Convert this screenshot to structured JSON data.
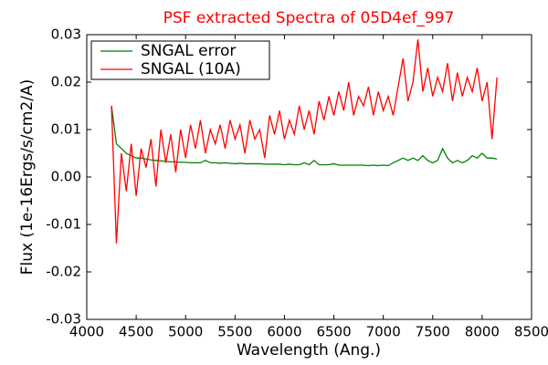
{
  "chart_data": {
    "type": "line",
    "title": "PSF extracted Spectra of 05D4ef_997",
    "x_label": "Wavelength (Ang.)",
    "y_label": "Flux (1e-16Ergs/s/cm2/A)",
    "x": [
      4250,
      4300,
      4350,
      4400,
      4450,
      4500,
      4550,
      4600,
      4650,
      4700,
      4750,
      4800,
      4850,
      4900,
      4950,
      5000,
      5050,
      5100,
      5150,
      5200,
      5250,
      5300,
      5350,
      5400,
      5450,
      5500,
      5550,
      5600,
      5650,
      5700,
      5750,
      5800,
      5850,
      5900,
      5950,
      6000,
      6050,
      6100,
      6150,
      6200,
      6250,
      6300,
      6350,
      6400,
      6450,
      6500,
      6550,
      6600,
      6650,
      6700,
      6750,
      6800,
      6850,
      6900,
      6950,
      7000,
      7050,
      7100,
      7150,
      7200,
      7250,
      7300,
      7350,
      7400,
      7450,
      7500,
      7550,
      7600,
      7650,
      7700,
      7750,
      7800,
      7850,
      7900,
      7950,
      8000,
      8050,
      8100,
      8150
    ],
    "series": [
      {
        "name": "SNGAL error",
        "color": "#008000",
        "values": [
          0.015,
          0.007,
          0.006,
          0.005,
          0.0045,
          0.004,
          0.004,
          0.0038,
          0.0036,
          0.0035,
          0.0034,
          0.0033,
          0.0032,
          0.0032,
          0.0031,
          0.0031,
          0.003,
          0.003,
          0.003,
          0.0035,
          0.003,
          0.003,
          0.0029,
          0.003,
          0.0029,
          0.0028,
          0.0029,
          0.0028,
          0.0028,
          0.0028,
          0.0028,
          0.0027,
          0.0027,
          0.0027,
          0.0027,
          0.0026,
          0.0027,
          0.0026,
          0.0026,
          0.003,
          0.0026,
          0.0035,
          0.0026,
          0.0026,
          0.0026,
          0.0028,
          0.0025,
          0.0025,
          0.0025,
          0.0025,
          0.0025,
          0.0025,
          0.0024,
          0.0025,
          0.0024,
          0.0025,
          0.0024,
          0.003,
          0.0035,
          0.004,
          0.0035,
          0.004,
          0.0035,
          0.0045,
          0.0035,
          0.003,
          0.0035,
          0.006,
          0.004,
          0.003,
          0.0035,
          0.003,
          0.0035,
          0.0045,
          0.004,
          0.005,
          0.004,
          0.004,
          0.0038
        ]
      },
      {
        "name": "SNGAL (10A)",
        "color": "#ff0000",
        "values": [
          0.015,
          -0.014,
          0.005,
          -0.003,
          0.007,
          -0.004,
          0.006,
          0.002,
          0.008,
          -0.002,
          0.01,
          0.003,
          0.009,
          0.001,
          0.01,
          0.004,
          0.011,
          0.006,
          0.012,
          0.005,
          0.01,
          0.007,
          0.011,
          0.006,
          0.012,
          0.008,
          0.011,
          0.005,
          0.012,
          0.008,
          0.01,
          0.004,
          0.013,
          0.009,
          0.014,
          0.008,
          0.012,
          0.009,
          0.015,
          0.01,
          0.014,
          0.009,
          0.016,
          0.012,
          0.017,
          0.013,
          0.018,
          0.014,
          0.02,
          0.013,
          0.017,
          0.015,
          0.019,
          0.013,
          0.018,
          0.014,
          0.017,
          0.013,
          0.019,
          0.025,
          0.016,
          0.02,
          0.029,
          0.018,
          0.023,
          0.017,
          0.021,
          0.018,
          0.024,
          0.016,
          0.022,
          0.017,
          0.021,
          0.018,
          0.023,
          0.016,
          0.02,
          0.008,
          0.021
        ]
      }
    ],
    "xlim": [
      4000,
      8500
    ],
    "xticks": [
      4000,
      4500,
      5000,
      5500,
      6000,
      6500,
      7000,
      7500,
      8000,
      8500
    ],
    "ylim": [
      -0.03,
      0.03
    ],
    "yticks": [
      -0.03,
      -0.02,
      -0.01,
      {
        "value": 0,
        "label": "0.00"
      },
      0.01,
      0.02,
      0.03
    ],
    "grid": false,
    "legend": "upper left"
  }
}
